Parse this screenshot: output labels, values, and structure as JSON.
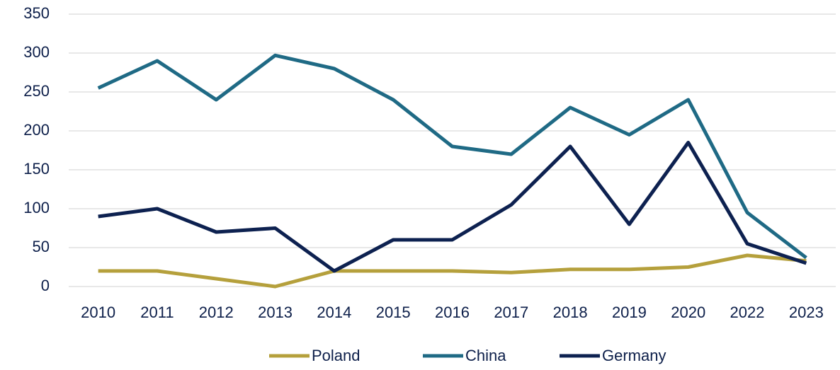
{
  "chart_data": {
    "type": "line",
    "categories": [
      "2010",
      "2011",
      "2012",
      "2013",
      "2014",
      "2015",
      "2016",
      "2017",
      "2018",
      "2019",
      "2020",
      "2022",
      "2023"
    ],
    "series": [
      {
        "name": "Poland",
        "color": "#b5a03c",
        "values": [
          20,
          20,
          10,
          0,
          20,
          20,
          20,
          18,
          22,
          22,
          25,
          40,
          33
        ]
      },
      {
        "name": "China",
        "color": "#1f6a85",
        "values": [
          255,
          290,
          240,
          297,
          280,
          240,
          180,
          170,
          230,
          195,
          240,
          95,
          37
        ]
      },
      {
        "name": "Germany",
        "color": "#0d2150",
        "values": [
          90,
          100,
          70,
          75,
          20,
          60,
          60,
          105,
          180,
          80,
          185,
          55,
          30
        ]
      }
    ],
    "ylim": [
      0,
      350
    ],
    "yticks": [
      0,
      50,
      100,
      150,
      200,
      250,
      300,
      350
    ],
    "grid": true,
    "legend": "bottom"
  }
}
